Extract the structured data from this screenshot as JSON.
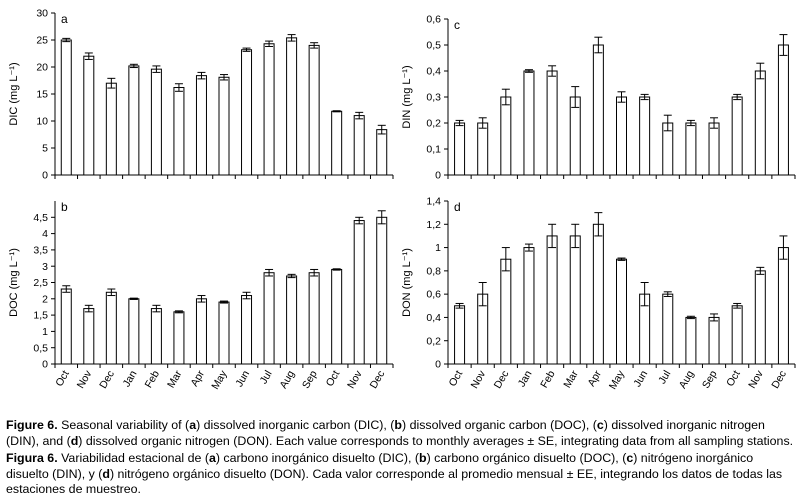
{
  "chart_data": [
    {
      "id": "a",
      "panel_label": "a",
      "type": "bar",
      "ylabel": "DIC (mg L⁻¹)",
      "ylim": [
        0,
        30
      ],
      "yticks": [
        0,
        5,
        10,
        15,
        20,
        25,
        30
      ],
      "ytick_labels": [
        "0",
        "5",
        "10",
        "15",
        "20",
        "25",
        "30"
      ],
      "categories": [
        "Oct",
        "Nov",
        "Dec",
        "Jan",
        "Feb",
        "Mar",
        "Apr",
        "May",
        "Jun",
        "Jul",
        "Aug",
        "Sep",
        "Oct",
        "Nov",
        "Dec"
      ],
      "show_xlabels": false,
      "values": [
        25.0,
        22.0,
        17.0,
        20.2,
        19.6,
        16.2,
        18.4,
        18.1,
        23.2,
        24.3,
        25.4,
        24.0,
        11.8,
        11.0,
        8.4
      ],
      "errors": [
        0.3,
        0.6,
        0.9,
        0.3,
        0.6,
        0.7,
        0.6,
        0.5,
        0.3,
        0.5,
        0.6,
        0.5,
        0.1,
        0.6,
        0.8
      ]
    },
    {
      "id": "c",
      "panel_label": "c",
      "type": "bar",
      "ylabel": "DIN (mg L⁻¹)",
      "ylim": [
        0,
        0.6
      ],
      "yticks": [
        0,
        0.1,
        0.2,
        0.3,
        0.4,
        0.5,
        0.6
      ],
      "ytick_labels": [
        "0",
        "0,1",
        "0,2",
        "0,3",
        "0,4",
        "0,5",
        "0,6"
      ],
      "categories": [
        "Oct",
        "Nov",
        "Dec",
        "Jan",
        "Feb",
        "Mar",
        "Apr",
        "May",
        "Jun",
        "Jul",
        "Aug",
        "Sep",
        "Oct",
        "Nov",
        "Dec"
      ],
      "show_xlabels": false,
      "values": [
        0.2,
        0.2,
        0.3,
        0.4,
        0.4,
        0.3,
        0.5,
        0.3,
        0.3,
        0.2,
        0.2,
        0.2,
        0.3,
        0.4,
        0.5
      ],
      "errors": [
        0.01,
        0.02,
        0.03,
        0.005,
        0.02,
        0.04,
        0.03,
        0.02,
        0.01,
        0.03,
        0.01,
        0.02,
        0.01,
        0.03,
        0.04
      ]
    },
    {
      "id": "b",
      "panel_label": "b",
      "type": "bar",
      "ylabel": "DOC (mg L⁻¹)",
      "ylim": [
        0,
        5
      ],
      "yticks": [
        0,
        0.5,
        1,
        1.5,
        2,
        2.5,
        3,
        3.5,
        4,
        4.5
      ],
      "ytick_labels": [
        "0",
        "0,5",
        "1",
        "1,5",
        "2",
        "2,5",
        "3",
        "3,5",
        "4",
        "4,5"
      ],
      "categories": [
        "Oct",
        "Nov",
        "Dec",
        "Jan",
        "Feb",
        "Mar",
        "Apr",
        "May",
        "Jun",
        "Jul",
        "Aug",
        "Sep",
        "Oct",
        "Nov",
        "Dec"
      ],
      "show_xlabels": true,
      "values": [
        2.3,
        1.7,
        2.2,
        2.0,
        1.7,
        1.6,
        2.0,
        1.9,
        2.1,
        2.8,
        2.7,
        2.8,
        2.9,
        4.4,
        4.5
      ],
      "errors": [
        0.1,
        0.1,
        0.1,
        0.02,
        0.1,
        0.03,
        0.1,
        0.03,
        0.1,
        0.1,
        0.05,
        0.1,
        0.02,
        0.1,
        0.2
      ]
    },
    {
      "id": "d",
      "panel_label": "d",
      "type": "bar",
      "ylabel": "DON (mg L⁻¹)",
      "ylim": [
        0,
        1.4
      ],
      "yticks": [
        0,
        0.2,
        0.4,
        0.6,
        0.8,
        1,
        1.2,
        1.4
      ],
      "ytick_labels": [
        "0",
        "0,2",
        "0,4",
        "0,6",
        "0,8",
        "1",
        "1,2",
        "1,4"
      ],
      "categories": [
        "Oct",
        "Nov",
        "Dec",
        "Jan",
        "Feb",
        "Mar",
        "Apr",
        "May",
        "Jun",
        "Jul",
        "Aug",
        "Sep",
        "Oct",
        "Nov",
        "Dec"
      ],
      "show_xlabels": true,
      "values": [
        0.5,
        0.6,
        0.9,
        1.0,
        1.1,
        1.1,
        1.2,
        0.9,
        0.6,
        0.6,
        0.4,
        0.4,
        0.5,
        0.8,
        1.0
      ],
      "errors": [
        0.02,
        0.1,
        0.1,
        0.03,
        0.1,
        0.1,
        0.1,
        0.01,
        0.1,
        0.02,
        0.01,
        0.03,
        0.02,
        0.03,
        0.1
      ]
    }
  ],
  "caption_en": {
    "label": "Figure 6.",
    "parts": [
      " Seasonal variability of (",
      "a",
      ") dissolved inorganic carbon (DIC), (",
      "b",
      ") dissolved organic carbon (DOC), (",
      "c",
      ") dissolved inorganic nitrogen (DIN), and (",
      "d",
      ") dissolved organic nitrogen (DON). Each value corresponds to monthly averages ± SE, integrating data from all sampling stations."
    ]
  },
  "caption_es": {
    "label": "Figura 6.",
    "parts": [
      " Variabilidad estacional de (",
      "a",
      ") carbono inorgánico disuelto (DIC), (",
      "b",
      ") carbono orgánico disuelto (DOC), (",
      "c",
      ") nitrógeno inorgánico disuelto (DIN), y (",
      "d",
      ") nitrógeno orgánico disuelto (DON). Cada valor corresponde al promedio mensual ± EE, integrando los datos de todas las estaciones de muestreo."
    ]
  }
}
